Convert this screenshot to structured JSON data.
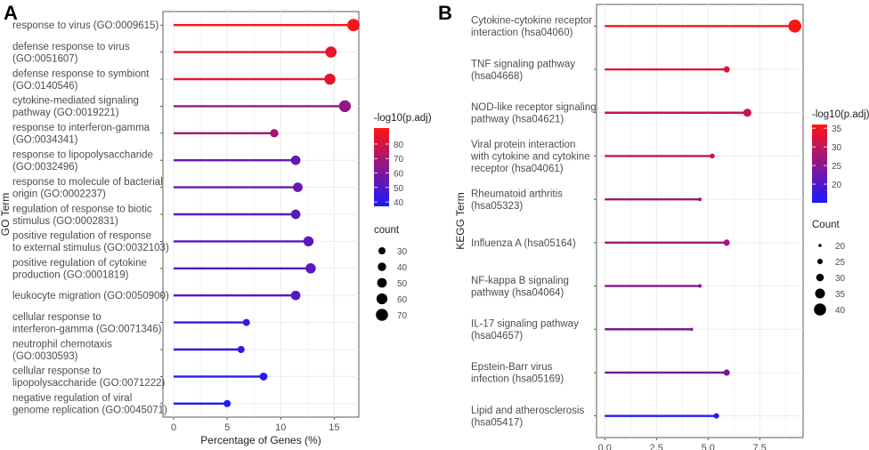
{
  "chart_data": [
    {
      "panel": "A",
      "type": "lollipop",
      "xlabel": "Percentage of Genes (%)",
      "ylabel": "GO Term",
      "xlim": [
        -1,
        17.3
      ],
      "xticks": [
        0,
        5,
        10,
        15
      ],
      "xtick_labels": [
        "0",
        "5",
        "10",
        "15"
      ],
      "grid": true,
      "categories": [
        [
          "response to virus (GO:0009615)"
        ],
        [
          "defense response to virus",
          "(GO:0051607)"
        ],
        [
          "defense response to symbiont",
          "(GO:0140546)"
        ],
        [
          "cytokine-mediated signaling",
          "pathway (GO:0019221)"
        ],
        [
          "response to interferon-gamma",
          "(GO:0034341)"
        ],
        [
          "response to lipopolysaccharide",
          "(GO:0032496)"
        ],
        [
          "response to molecule of bacterial",
          "origin (GO:0002237)"
        ],
        [
          "regulation of response to biotic",
          "stimulus (GO:0002831)"
        ],
        [
          "positive regulation of response",
          "to external stimulus (GO:0032103)"
        ],
        [
          "positive regulation of cytokine",
          "production (GO:0001819)"
        ],
        [
          "leukocyte migration (GO:0050900)"
        ],
        [
          "cellular response to",
          "interferon-gamma (GO:0071346)"
        ],
        [
          "neutrophil chemotaxis",
          "(GO:0030593)"
        ],
        [
          "cellular response to",
          "lipopolysaccharide (GO:0071222)"
        ],
        [
          "negative regulation of viral",
          "genome replication (GO:0045071)"
        ]
      ],
      "values": [
        16.8,
        14.7,
        14.6,
        16.0,
        9.4,
        11.4,
        11.6,
        11.4,
        12.6,
        12.8,
        11.4,
        6.8,
        6.3,
        8.4,
        5.0
      ],
      "counts": [
        72,
        63,
        62,
        68,
        40,
        49,
        50,
        49,
        54,
        55,
        49,
        29,
        27,
        36,
        21
      ],
      "neglog10_padj": [
        90,
        85,
        85,
        65,
        70,
        55,
        55,
        52,
        52,
        52,
        50,
        45,
        43,
        40,
        38
      ],
      "color_legend": {
        "title": "-log10(p.adj)",
        "min": 37,
        "max": 91,
        "ticks": [
          40,
          50,
          60,
          70,
          80
        ],
        "tick_labels": [
          "40",
          "50",
          "60",
          "70",
          "80"
        ]
      },
      "size_legend": {
        "title": "count",
        "values": [
          30,
          40,
          50,
          60,
          70
        ],
        "labels": [
          "30",
          "40",
          "50",
          "60",
          "70"
        ]
      }
    },
    {
      "panel": "B",
      "type": "lollipop",
      "xlabel": "Percentage of Genes (%)",
      "ylabel": "KEGG Term",
      "xlim": [
        -0.4,
        9.6
      ],
      "xticks": [
        0,
        2.5,
        5,
        7.5
      ],
      "xtick_labels": [
        "0.0",
        "2.5",
        "5.0",
        "7.5"
      ],
      "grid": true,
      "categories": [
        [
          "Cytokine-cytokine receptor",
          "interaction (hsa04060)"
        ],
        [
          "TNF signaling pathway",
          "(hsa04668)"
        ],
        [
          "NOD-like receptor signaling",
          "pathway (hsa04621)"
        ],
        [
          "Viral protein interaction",
          "with cytokine and cytokine",
          "receptor (hsa04061)"
        ],
        [
          "Rheumatoid arthritis",
          "(hsa05323)"
        ],
        [
          "Influenza A (hsa05164)"
        ],
        [
          "NF-kappa B signaling",
          "pathway (hsa04064)"
        ],
        [
          "IL-17 signaling pathway",
          "(hsa04657)"
        ],
        [
          "Epstein-Barr virus",
          "infection (hsa05169)"
        ],
        [
          "Lipid and atherosclerosis",
          "(hsa05417)"
        ]
      ],
      "values": [
        9.2,
        5.9,
        6.9,
        5.2,
        4.6,
        5.9,
        4.6,
        4.2,
        5.9,
        5.4
      ],
      "counts": [
        42,
        27,
        31,
        24,
        21,
        27,
        21,
        19,
        27,
        25
      ],
      "neglog10_padj": [
        36,
        33,
        31,
        31,
        27,
        27,
        25,
        24,
        23,
        16
      ],
      "color_legend": {
        "title": "-log10(p.adj)",
        "min": 15,
        "max": 36,
        "ticks": [
          20,
          25,
          30,
          35
        ],
        "tick_labels": [
          "20",
          "25",
          "30",
          "35"
        ]
      },
      "size_legend": {
        "title": "Count",
        "values": [
          20,
          25,
          30,
          35,
          40
        ],
        "labels": [
          "20",
          "25",
          "30",
          "35",
          "40"
        ]
      }
    }
  ]
}
